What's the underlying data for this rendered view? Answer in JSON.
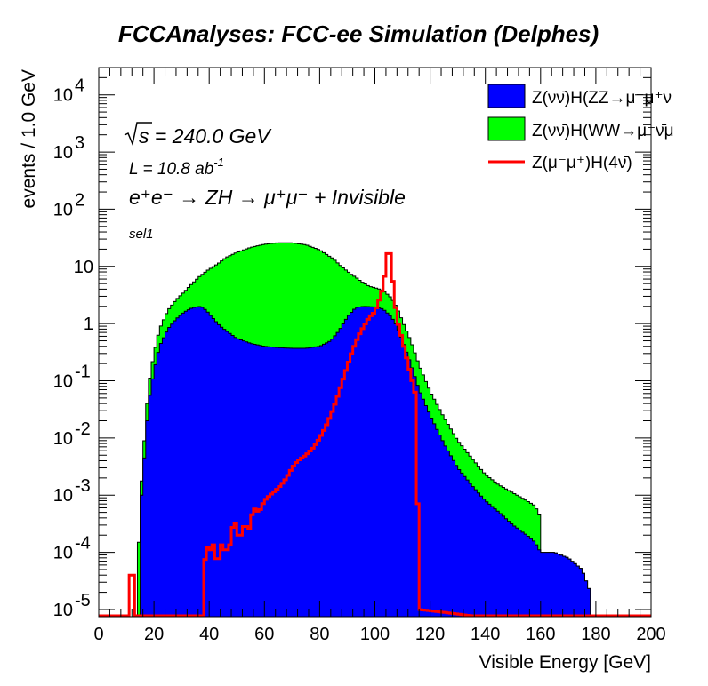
{
  "chart_data": {
    "type": "bar",
    "title": "FCCAnalyses: FCC-ee Simulation (Delphes)",
    "xlabel": "Visible Energy [GeV]",
    "ylabel": "events / 1.0 GeV",
    "xlim": [
      0,
      200
    ],
    "ylim": [
      7.5e-06,
      30000
    ],
    "yscale": "log",
    "bin_width": 1.0,
    "stacked": true,
    "x_ticks": [
      0,
      20,
      40,
      60,
      80,
      100,
      120,
      140,
      160,
      180,
      200
    ],
    "x_tick_labels": [
      "0",
      "20",
      "40",
      "60",
      "80",
      "100",
      "120",
      "140",
      "160",
      "180",
      "200"
    ],
    "y_ticks": [
      1e-05,
      0.0001,
      0.001,
      0.01,
      0.1,
      1,
      10,
      100,
      1000,
      10000
    ],
    "y_tick_labels": [
      {
        "base": "10",
        "exp": "-5"
      },
      {
        "base": "10",
        "exp": "-4"
      },
      {
        "base": "10",
        "exp": "-3"
      },
      {
        "base": "10",
        "exp": "-2"
      },
      {
        "base": "10",
        "exp": "-1"
      },
      {
        "base": "1",
        "exp": ""
      },
      {
        "base": "10",
        "exp": ""
      },
      {
        "base": "10",
        "exp": "2"
      },
      {
        "base": "10",
        "exp": "3"
      },
      {
        "base": "10",
        "exp": "4"
      }
    ],
    "annotations": {
      "sqrt_s": "s = 240.0 GeV",
      "lumi": {
        "base": "L = 10.8 ab",
        "exp": "-1"
      },
      "process": "e⁺e⁻ → ZH → μ⁺μ⁻ + Invisible",
      "selection": "sel1"
    },
    "legend_position": "top-right",
    "series": [
      {
        "name": "Z(νν̄)H(ZZ→μ⁻μ⁺ν",
        "style": "filled",
        "color": "#0000ff",
        "points": [
          [
            15,
            0
          ],
          [
            16,
            0.002
          ],
          [
            17,
            0.01
          ],
          [
            18,
            0.04
          ],
          [
            20,
            0.15
          ],
          [
            22,
            0.4
          ],
          [
            25,
            0.8
          ],
          [
            28,
            1.2
          ],
          [
            31,
            1.6
          ],
          [
            34,
            1.9
          ],
          [
            37,
            2.0
          ],
          [
            39,
            1.7
          ],
          [
            41,
            1.3
          ],
          [
            44,
            0.9
          ],
          [
            47,
            0.7
          ],
          [
            50,
            0.55
          ],
          [
            55,
            0.45
          ],
          [
            60,
            0.4
          ],
          [
            65,
            0.38
          ],
          [
            70,
            0.37
          ],
          [
            75,
            0.37
          ],
          [
            80,
            0.4
          ],
          [
            84,
            0.5
          ],
          [
            87,
            0.75
          ],
          [
            90,
            1.3
          ],
          [
            93,
            1.9
          ],
          [
            96,
            2.0
          ],
          [
            100,
            1.95
          ],
          [
            103,
            1.8
          ],
          [
            106,
            1.3
          ],
          [
            108,
            0.9
          ],
          [
            110,
            0.5
          ],
          [
            113,
            0.2
          ],
          [
            116,
            0.07
          ],
          [
            120,
            0.025
          ],
          [
            125,
            0.008
          ],
          [
            130,
            0.003
          ],
          [
            135,
            0.0015
          ],
          [
            140,
            0.0008
          ],
          [
            145,
            0.0005
          ],
          [
            150,
            0.0003
          ],
          [
            155,
            0.0002
          ],
          [
            158,
            0.00015
          ],
          [
            160,
            0.0001
          ],
          [
            165,
            0.0001
          ],
          [
            170,
            8e-05
          ],
          [
            175,
            5e-05
          ],
          [
            178,
            2e-05
          ]
        ]
      },
      {
        "name": "Z(νν̄)H(WW→μ⁻ν̄μ",
        "style": "filled",
        "color": "#00ff00",
        "points": [
          [
            14,
            0
          ],
          [
            15,
            0.0003
          ],
          [
            16,
            0.002
          ],
          [
            17,
            0.01
          ],
          [
            18,
            0.04
          ],
          [
            20,
            0.15
          ],
          [
            22,
            0.4
          ],
          [
            25,
            0.9
          ],
          [
            28,
            1.4
          ],
          [
            31,
            2.0
          ],
          [
            34,
            3.2
          ],
          [
            37,
            5
          ],
          [
            40,
            7.5
          ],
          [
            43,
            10
          ],
          [
            46,
            13.5
          ],
          [
            50,
            17
          ],
          [
            55,
            21
          ],
          [
            60,
            24
          ],
          [
            65,
            25.5
          ],
          [
            70,
            25.5
          ],
          [
            75,
            23.5
          ],
          [
            80,
            19
          ],
          [
            85,
            13
          ],
          [
            90,
            7
          ],
          [
            95,
            3.5
          ],
          [
            98,
            2.5
          ],
          [
            100,
            2.3
          ],
          [
            103,
            2.0
          ],
          [
            106,
            1.5
          ],
          [
            108,
            1.0
          ],
          [
            110,
            0.6
          ],
          [
            113,
            0.3
          ],
          [
            116,
            0.12
          ],
          [
            120,
            0.04
          ],
          [
            125,
            0.015
          ],
          [
            130,
            0.006
          ],
          [
            135,
            0.003
          ],
          [
            140,
            0.0015
          ],
          [
            145,
            0.001
          ],
          [
            150,
            0.0008
          ],
          [
            155,
            0.0006
          ],
          [
            158,
            0.0005
          ],
          [
            160,
            0.0003
          ]
        ]
      },
      {
        "name": "Z(μ⁻μ⁺)H(4ν̄)",
        "style": "line",
        "color": "#ff0000",
        "points": [
          [
            11,
            0
          ],
          [
            12,
            8e-05
          ],
          [
            13,
            0
          ],
          [
            38,
            0
          ],
          [
            39,
            0.00015
          ],
          [
            40,
            0.0001
          ],
          [
            42,
            0.00015
          ],
          [
            43,
            4e-05
          ],
          [
            44,
            0.00015
          ],
          [
            46,
            0.0001
          ],
          [
            48,
            0.00015
          ],
          [
            49,
            0.0005
          ],
          [
            50,
            0.0002
          ],
          [
            52,
            0.0002
          ],
          [
            53,
            0.0004
          ],
          [
            54,
            0.0002
          ],
          [
            56,
            0.0006
          ],
          [
            58,
            0.0005
          ],
          [
            60,
            0.0008
          ],
          [
            62,
            0.001
          ],
          [
            64,
            0.0012
          ],
          [
            66,
            0.0015
          ],
          [
            68,
            0.002
          ],
          [
            70,
            0.003
          ],
          [
            72,
            0.004
          ],
          [
            75,
            0.005
          ],
          [
            78,
            0.007
          ],
          [
            80,
            0.01
          ],
          [
            82,
            0.015
          ],
          [
            84,
            0.025
          ],
          [
            86,
            0.045
          ],
          [
            88,
            0.09
          ],
          [
            90,
            0.18
          ],
          [
            92,
            0.35
          ],
          [
            94,
            0.6
          ],
          [
            96,
            0.9
          ],
          [
            98,
            1.3
          ],
          [
            100,
            1.6
          ],
          [
            101,
            2.2
          ],
          [
            102,
            3.0
          ],
          [
            103,
            4.5
          ],
          [
            104,
            10
          ],
          [
            105,
            28
          ],
          [
            106,
            10
          ],
          [
            107,
            3
          ],
          [
            108,
            1.2
          ],
          [
            110,
            0.5
          ],
          [
            112,
            0.2
          ],
          [
            114,
            0.08
          ],
          [
            115,
            0.05
          ],
          [
            116,
            1e-05
          ],
          [
            200,
            0
          ]
        ]
      }
    ]
  },
  "colors": {
    "zz": "#0000ff",
    "ww": "#00ff00",
    "signal": "#ff0000"
  }
}
